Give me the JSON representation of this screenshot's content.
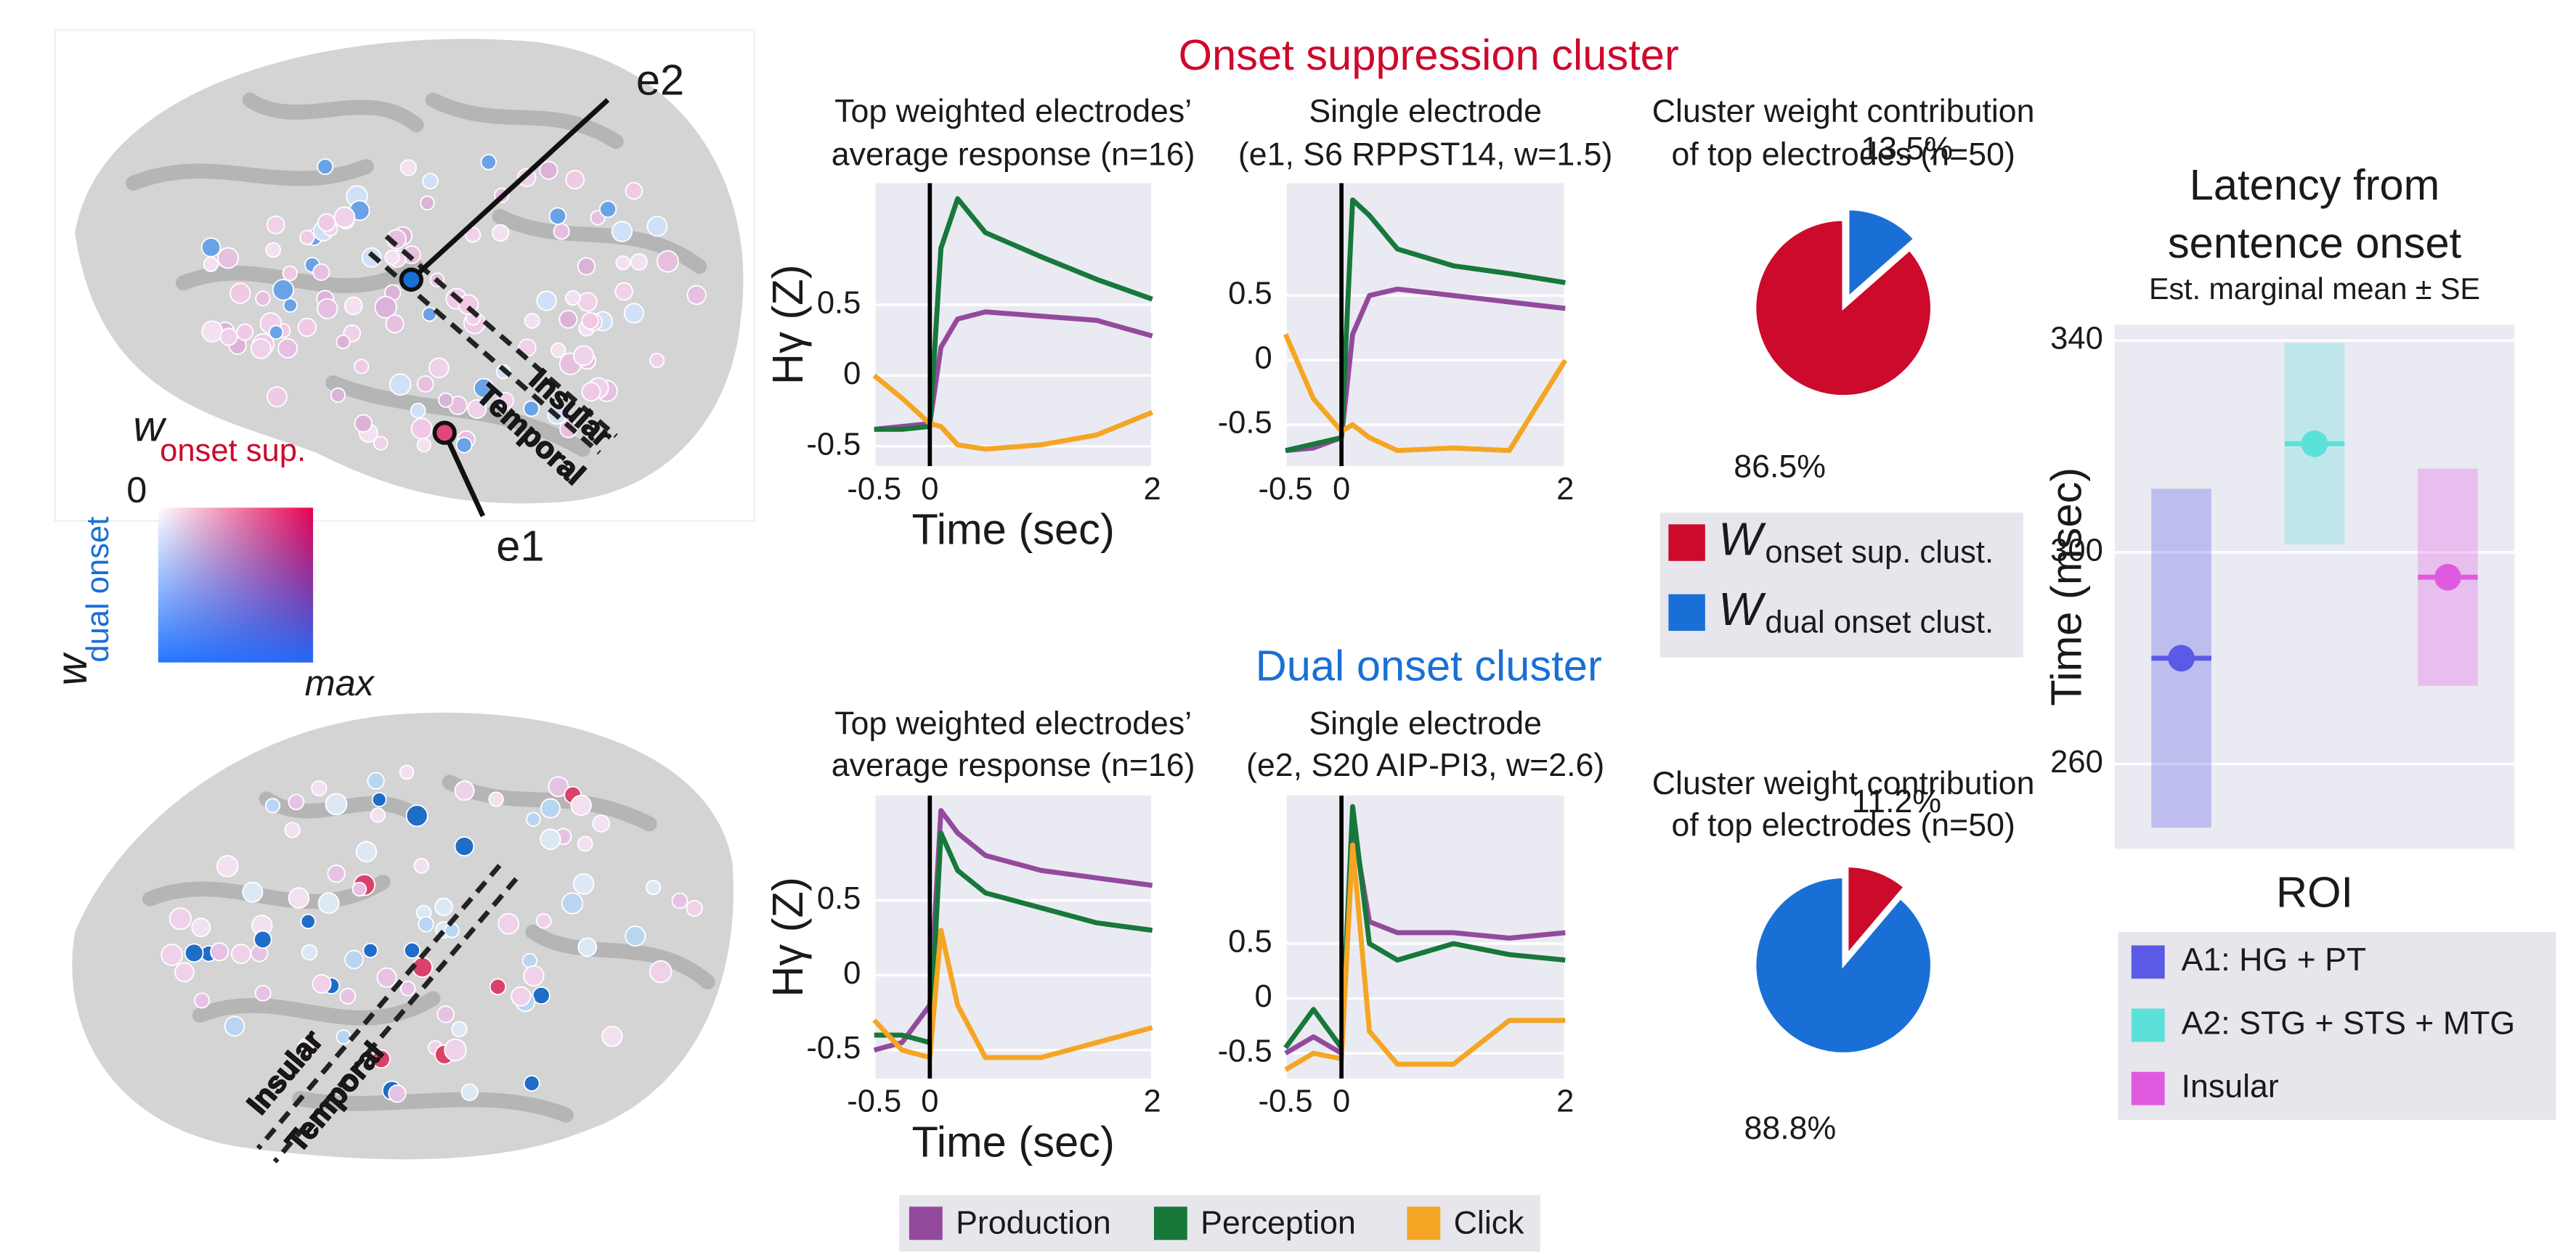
{
  "cluster_titles": [
    "Onset suppression cluster",
    "Dual onset cluster"
  ],
  "brain_panel": {
    "electrodes": [
      "e1",
      "e2"
    ],
    "regions": [
      "Insular",
      "Temporal"
    ],
    "colorbar": {
      "symbol": "w",
      "x_subscript": "onset sup.",
      "y_subscript": "dual onset",
      "min_label": "0",
      "max_label": "max"
    }
  },
  "chart_data": [
    {
      "type": "line",
      "title": [
        "Top weighted electrodes’",
        "average response (n=16)"
      ],
      "x": [
        -0.5,
        -0.25,
        0,
        0.1,
        0.25,
        0.5,
        1,
        1.5,
        2
      ],
      "series": [
        {
          "name": "Production",
          "color": "#934a9c",
          "values": [
            -0.38,
            -0.36,
            -0.34,
            0.2,
            0.4,
            0.45,
            0.42,
            0.39,
            0.28
          ]
        },
        {
          "name": "Perception",
          "color": "#17783a",
          "values": [
            -0.38,
            -0.38,
            -0.36,
            0.9,
            1.25,
            1.01,
            0.84,
            0.68,
            0.54
          ]
        },
        {
          "name": "Click",
          "color": "#f5a524",
          "values": [
            0.0,
            -0.16,
            -0.34,
            -0.36,
            -0.49,
            -0.52,
            -0.49,
            -0.42,
            -0.26
          ]
        }
      ],
      "xlim": [
        -0.5,
        2
      ],
      "xticks": [
        -0.5,
        0,
        2
      ],
      "ylim": [
        -0.64,
        1.36
      ],
      "yticks": [
        -0.5,
        0,
        0.5
      ],
      "xlabel": "Time (sec)",
      "ylabel": "Hγ (Z)",
      "onset_line": 0,
      "grid": true
    },
    {
      "type": "line",
      "title": [
        "Single electrode",
        "(e1, S6 RPPST14, w=1.5)"
      ],
      "x": [
        -0.5,
        -0.25,
        0,
        0.1,
        0.25,
        0.5,
        1,
        1.5,
        2
      ],
      "series": [
        {
          "name": "Production",
          "color": "#934a9c",
          "values": [
            -0.7,
            -0.68,
            -0.6,
            0.2,
            0.5,
            0.55,
            0.5,
            0.45,
            0.4
          ]
        },
        {
          "name": "Perception",
          "color": "#17783a",
          "values": [
            -0.7,
            -0.65,
            -0.6,
            1.24,
            1.12,
            0.86,
            0.73,
            0.67,
            0.6
          ]
        },
        {
          "name": "Click",
          "color": "#f5a524",
          "values": [
            0.2,
            -0.3,
            -0.55,
            -0.5,
            -0.6,
            -0.7,
            -0.68,
            -0.7,
            0.0
          ]
        }
      ],
      "xlim": [
        -0.5,
        2
      ],
      "xticks": [
        -0.5,
        0,
        2
      ],
      "ylim": [
        -0.82,
        1.37
      ],
      "yticks": [
        -0.5,
        0,
        0.5
      ],
      "onset_line": 0,
      "grid": true
    },
    {
      "type": "pie",
      "title": [
        "Cluster weight contribution",
        "of top electrodes (n=50)"
      ],
      "categories": [
        "onset sup. clust.",
        "dual onset clust."
      ],
      "legend_symbol": "W",
      "values": [
        86.5,
        13.5
      ],
      "value_labels": [
        "86.5%",
        "13.5%"
      ],
      "colors": [
        "#cc0a2c",
        "#1a6fd6"
      ]
    },
    {
      "type": "line",
      "title": [
        "Top weighted electrodes’",
        "average response (n=16)"
      ],
      "x": [
        -0.5,
        -0.25,
        0,
        0.1,
        0.25,
        0.5,
        1,
        1.5,
        2
      ],
      "series": [
        {
          "name": "Production",
          "color": "#934a9c",
          "values": [
            -0.5,
            -0.45,
            -0.2,
            1.1,
            0.95,
            0.8,
            0.7,
            0.65,
            0.6
          ]
        },
        {
          "name": "Perception",
          "color": "#17783a",
          "values": [
            -0.4,
            -0.4,
            -0.45,
            0.95,
            0.7,
            0.55,
            0.45,
            0.35,
            0.3
          ]
        },
        {
          "name": "Click",
          "color": "#f5a524",
          "values": [
            -0.3,
            -0.5,
            -0.55,
            0.3,
            -0.2,
            -0.55,
            -0.55,
            -0.45,
            -0.35
          ]
        }
      ],
      "xlim": [
        -0.5,
        2
      ],
      "xticks": [
        -0.5,
        0,
        2
      ],
      "ylim": [
        -0.69,
        1.2
      ],
      "yticks": [
        -0.5,
        0,
        0.5
      ],
      "xlabel": "Time (sec)",
      "ylabel": "Hγ (Z)",
      "onset_line": 0,
      "grid": true
    },
    {
      "type": "line",
      "title": [
        "Single electrode",
        "(e2, S20 AIP-PI3, w=2.6)"
      ],
      "x": [
        -0.5,
        -0.25,
        0,
        0.1,
        0.25,
        0.5,
        1,
        1.5,
        2
      ],
      "series": [
        {
          "name": "Production",
          "color": "#934a9c",
          "values": [
            -0.5,
            -0.35,
            -0.5,
            1.6,
            0.7,
            0.6,
            0.6,
            0.55,
            0.6
          ]
        },
        {
          "name": "Perception",
          "color": "#17783a",
          "values": [
            -0.45,
            -0.1,
            -0.45,
            1.75,
            0.5,
            0.35,
            0.5,
            0.4,
            0.35
          ]
        },
        {
          "name": "Click",
          "color": "#f5a524",
          "values": [
            -0.65,
            -0.5,
            -0.55,
            1.4,
            -0.3,
            -0.6,
            -0.6,
            -0.2,
            -0.2
          ]
        }
      ],
      "xlim": [
        -0.5,
        2
      ],
      "xticks": [
        -0.5,
        0,
        2
      ],
      "ylim": [
        -0.73,
        1.85
      ],
      "yticks": [
        -0.5,
        0,
        0.5
      ],
      "onset_line": 0,
      "grid": true
    },
    {
      "type": "pie",
      "title": [
        "Cluster weight contribution",
        "of top electrodes (n=50)"
      ],
      "categories": [
        "dual onset clust.",
        "onset sup. clust."
      ],
      "values": [
        88.8,
        11.2
      ],
      "value_labels": [
        "88.8%",
        "11.2%"
      ],
      "colors": [
        "#1a6fd6",
        "#cc0a2c"
      ]
    },
    {
      "type": "errorbar",
      "title": [
        "Latency from",
        "sentence onset"
      ],
      "subtitle": "Est. marginal mean ± SE",
      "categories": [
        "A1: HG + PT",
        "A2: STG + STS + MTG",
        "Insular"
      ],
      "colors": [
        "#5a5ae6",
        "#5ce0da",
        "#e05ae0"
      ],
      "values": [
        280,
        320.5,
        295.3
      ],
      "errors": [
        32,
        19,
        20.5
      ],
      "ylim": [
        244,
        343
      ],
      "yticks": [
        260,
        300,
        340
      ],
      "ylabel": "Time (msec)",
      "xlabel": "ROI",
      "grid": true
    }
  ]
}
